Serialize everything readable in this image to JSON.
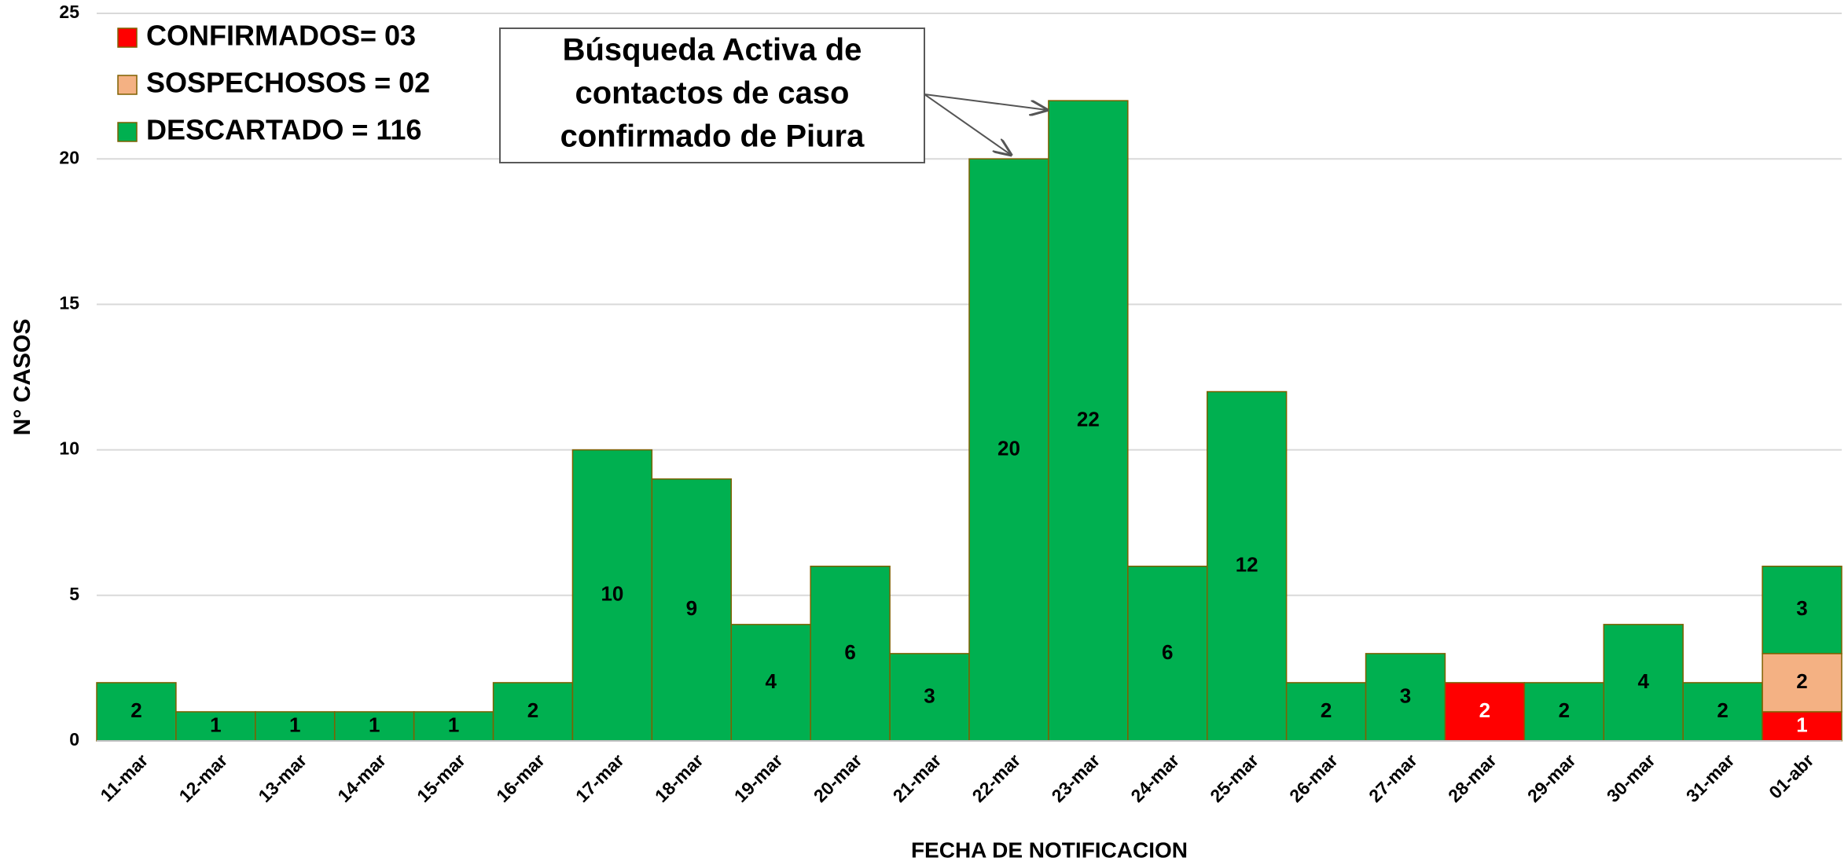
{
  "chart_data": {
    "type": "bar",
    "stacked": true,
    "x_label": "FECHA DE NOTIFICACION",
    "y_label": "N° CASOS",
    "annotation": [
      "Búsqueda Activa de",
      "contactos de caso",
      "confirmado de Piura"
    ],
    "categories": [
      "11-mar",
      "12-mar",
      "13-mar",
      "14-mar",
      "15-mar",
      "16-mar",
      "17-mar",
      "18-mar",
      "19-mar",
      "20-mar",
      "21-mar",
      "22-mar",
      "23-mar",
      "24-mar",
      "25-mar",
      "26-mar",
      "27-mar",
      "28-mar",
      "29-mar",
      "30-mar",
      "31-mar",
      "01-abr"
    ],
    "series": [
      {
        "name": "CONFIRMADOS= 03",
        "color": "#ff0000",
        "label_color": "#ffffff",
        "values": [
          0,
          0,
          0,
          0,
          0,
          0,
          0,
          0,
          0,
          0,
          0,
          0,
          0,
          0,
          0,
          0,
          0,
          2,
          0,
          0,
          0,
          1
        ]
      },
      {
        "name": "SOSPECHOSOS = 02",
        "color": "#f4b183",
        "label_color": "#000000",
        "values": [
          0,
          0,
          0,
          0,
          0,
          0,
          0,
          0,
          0,
          0,
          0,
          0,
          0,
          0,
          0,
          0,
          0,
          0,
          0,
          0,
          0,
          2
        ]
      },
      {
        "name": "DESCARTADO = 116",
        "color": "#00b050",
        "label_color": "#000000",
        "values": [
          2,
          1,
          1,
          1,
          1,
          2,
          10,
          9,
          4,
          6,
          3,
          20,
          22,
          6,
          12,
          2,
          3,
          0,
          2,
          4,
          2,
          3
        ]
      }
    ],
    "ylim": [
      0,
      25
    ],
    "yticks": [
      0,
      5,
      10,
      15,
      20,
      25
    ],
    "grid": true,
    "legend": "top-left"
  }
}
